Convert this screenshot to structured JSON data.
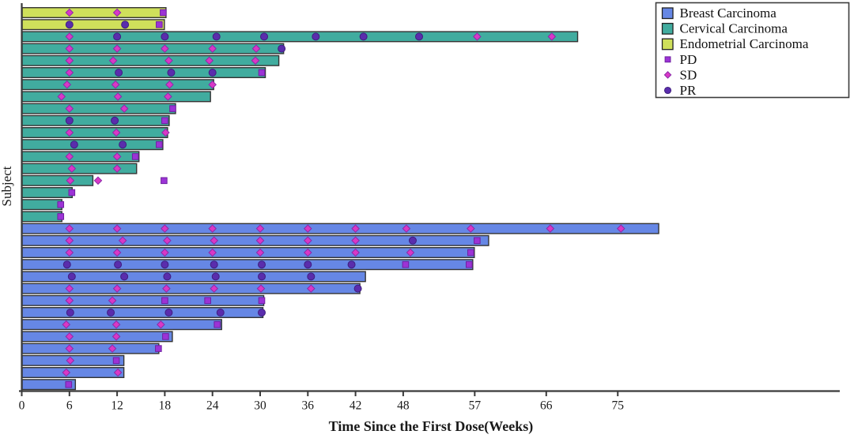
{
  "chart_data": {
    "type": "bar",
    "subtype": "horizontal-swimmer-plot",
    "title": "",
    "xlabel": "Time Since the First Dose(Weeks)",
    "ylabel": "Subject",
    "x_ticks": [
      0,
      6,
      12,
      18,
      24,
      30,
      36,
      42,
      48,
      57,
      66,
      75
    ],
    "xlim": [
      0,
      103
    ],
    "grid": false,
    "background": "#ffffff",
    "axis_color": "#3a3a3a",
    "bar_edge_color": "#343434",
    "legend": {
      "position": "top-right",
      "border_color": "#3c3c3c",
      "bar_entries": [
        {
          "label": "Breast Carcinoma",
          "color": "#6687e5"
        },
        {
          "label": "Cervical Carcinoma",
          "color": "#41ac9f"
        },
        {
          "label": "Endometrial Carcinoma",
          "color": "#cfe05b"
        }
      ],
      "marker_entries": [
        {
          "label": "PD",
          "shape": "square",
          "color": "#9c33d6",
          "edge": "#6f21a0"
        },
        {
          "label": "SD",
          "shape": "diamond",
          "color": "#d938c6",
          "edge": "#8a2ba8"
        },
        {
          "label": "PR",
          "shape": "circle",
          "color": "#5a2dad",
          "edge": "#3f1e7e"
        }
      ]
    },
    "marker_styles": {
      "PD": {
        "shape": "square",
        "color": "#9c33d6",
        "edge": "#6f21a0"
      },
      "SD": {
        "shape": "diamond",
        "color": "#d938c6",
        "edge": "#8a2ba8"
      },
      "PR": {
        "shape": "circle",
        "color": "#5a2dad",
        "edge": "#3f1e7e"
      }
    },
    "group_colors": {
      "Breast Carcinoma": "#6687e5",
      "Cervical Carcinoma": "#41ac9f",
      "Endometrial Carcinoma": "#cfe05b"
    },
    "rows": [
      {
        "group": "Endometrial Carcinoma",
        "end_week": 18.2,
        "markers": [
          {
            "type": "SD",
            "week": 6
          },
          {
            "type": "SD",
            "week": 12
          },
          {
            "type": "PD",
            "week": 17.8
          }
        ]
      },
      {
        "group": "Endometrial Carcinoma",
        "end_week": 18.0,
        "markers": [
          {
            "type": "PR",
            "week": 6
          },
          {
            "type": "PR",
            "week": 13
          },
          {
            "type": "PD",
            "week": 17.3
          }
        ]
      },
      {
        "group": "Cervical Carcinoma",
        "end_week": 70.0,
        "markers": [
          {
            "type": "SD",
            "week": 6
          },
          {
            "type": "PR",
            "week": 12
          },
          {
            "type": "PR",
            "week": 18
          },
          {
            "type": "PR",
            "week": 24.5
          },
          {
            "type": "PR",
            "week": 30.5
          },
          {
            "type": "PR",
            "week": 37
          },
          {
            "type": "PR",
            "week": 43
          },
          {
            "type": "PR",
            "week": 50
          },
          {
            "type": "SD",
            "week": 57.3
          },
          {
            "type": "SD",
            "week": 66.7
          }
        ]
      },
      {
        "group": "Cervical Carcinoma",
        "end_week": 33.0,
        "markers": [
          {
            "type": "SD",
            "week": 6
          },
          {
            "type": "SD",
            "week": 12
          },
          {
            "type": "SD",
            "week": 18
          },
          {
            "type": "SD",
            "week": 24
          },
          {
            "type": "SD",
            "week": 29.5
          },
          {
            "type": "PR",
            "week": 32.7
          }
        ]
      },
      {
        "group": "Cervical Carcinoma",
        "end_week": 32.4,
        "markers": [
          {
            "type": "SD",
            "week": 6
          },
          {
            "type": "SD",
            "week": 11.5
          },
          {
            "type": "SD",
            "week": 18.5
          },
          {
            "type": "SD",
            "week": 23.6
          },
          {
            "type": "SD",
            "week": 29.4
          }
        ]
      },
      {
        "group": "Cervical Carcinoma",
        "end_week": 30.7,
        "markers": [
          {
            "type": "SD",
            "week": 6
          },
          {
            "type": "PR",
            "week": 12.2
          },
          {
            "type": "PR",
            "week": 18.8
          },
          {
            "type": "PR",
            "week": 24
          },
          {
            "type": "PD",
            "week": 30.2
          }
        ]
      },
      {
        "group": "Cervical Carcinoma",
        "end_week": 24.2,
        "markers": [
          {
            "type": "SD",
            "week": 5.7
          },
          {
            "type": "SD",
            "week": 11.8
          },
          {
            "type": "SD",
            "week": 18.6
          },
          {
            "type": "SD",
            "week": 24
          }
        ]
      },
      {
        "group": "Cervical Carcinoma",
        "end_week": 23.8,
        "markers": [
          {
            "type": "SD",
            "week": 5
          },
          {
            "type": "SD",
            "week": 12.1
          },
          {
            "type": "SD",
            "week": 18.4
          }
        ]
      },
      {
        "group": "Cervical Carcinoma",
        "end_week": 19.4,
        "markers": [
          {
            "type": "SD",
            "week": 6
          },
          {
            "type": "SD",
            "week": 12.9
          },
          {
            "type": "PD",
            "week": 19
          }
        ]
      },
      {
        "group": "Cervical Carcinoma",
        "end_week": 18.6,
        "markers": [
          {
            "type": "PR",
            "week": 6
          },
          {
            "type": "PR",
            "week": 11.7
          },
          {
            "type": "PD",
            "week": 18
          }
        ]
      },
      {
        "group": "Cervical Carcinoma",
        "end_week": 18.4,
        "markers": [
          {
            "type": "SD",
            "week": 6
          },
          {
            "type": "SD",
            "week": 11.9
          },
          {
            "type": "SD",
            "week": 18.1
          }
        ]
      },
      {
        "group": "Cervical Carcinoma",
        "end_week": 17.8,
        "markers": [
          {
            "type": "PR",
            "week": 6.6
          },
          {
            "type": "PR",
            "week": 12.7
          },
          {
            "type": "PD",
            "week": 17.3
          }
        ]
      },
      {
        "group": "Cervical Carcinoma",
        "end_week": 14.8,
        "markers": [
          {
            "type": "SD",
            "week": 6
          },
          {
            "type": "SD",
            "week": 12
          },
          {
            "type": "PD",
            "week": 14.3
          }
        ]
      },
      {
        "group": "Cervical Carcinoma",
        "end_week": 14.5,
        "markers": [
          {
            "type": "SD",
            "week": 6.3
          },
          {
            "type": "SD",
            "week": 12
          }
        ]
      },
      {
        "group": "Cervical Carcinoma",
        "end_week": 9.0,
        "markers": [
          {
            "type": "SD",
            "week": 6.1
          },
          {
            "type": "SD",
            "week": 9.6
          },
          {
            "type": "PD",
            "week": 17.9
          }
        ]
      },
      {
        "group": "Cervical Carcinoma",
        "end_week": 6.4,
        "markers": [
          {
            "type": "PD",
            "week": 6.3
          }
        ]
      },
      {
        "group": "Cervical Carcinoma",
        "end_week": 5.1,
        "markers": [
          {
            "type": "PD",
            "week": 4.9
          }
        ]
      },
      {
        "group": "Cervical Carcinoma",
        "end_week": 5.1,
        "markers": [
          {
            "type": "PD",
            "week": 4.9
          }
        ]
      },
      {
        "group": "Breast Carcinoma",
        "end_week": 80.2,
        "markers": [
          {
            "type": "SD",
            "week": 6
          },
          {
            "type": "SD",
            "week": 12
          },
          {
            "type": "SD",
            "week": 18
          },
          {
            "type": "SD",
            "week": 24
          },
          {
            "type": "SD",
            "week": 30
          },
          {
            "type": "SD",
            "week": 36
          },
          {
            "type": "SD",
            "week": 42
          },
          {
            "type": "SD",
            "week": 48.4
          },
          {
            "type": "SD",
            "week": 56.5
          },
          {
            "type": "SD",
            "week": 66.5
          },
          {
            "type": "SD",
            "week": 75.4
          }
        ]
      },
      {
        "group": "Breast Carcinoma",
        "end_week": 58.8,
        "markers": [
          {
            "type": "SD",
            "week": 6
          },
          {
            "type": "SD",
            "week": 12.7
          },
          {
            "type": "SD",
            "week": 18.3
          },
          {
            "type": "SD",
            "week": 24.2
          },
          {
            "type": "SD",
            "week": 30
          },
          {
            "type": "SD",
            "week": 36
          },
          {
            "type": "SD",
            "week": 42
          },
          {
            "type": "PR",
            "week": 49.2
          },
          {
            "type": "PD",
            "week": 57.3
          }
        ]
      },
      {
        "group": "Breast Carcinoma",
        "end_week": 57.0,
        "markers": [
          {
            "type": "SD",
            "week": 6
          },
          {
            "type": "SD",
            "week": 12
          },
          {
            "type": "SD",
            "week": 18
          },
          {
            "type": "SD",
            "week": 24
          },
          {
            "type": "SD",
            "week": 30
          },
          {
            "type": "SD",
            "week": 36
          },
          {
            "type": "SD",
            "week": 42
          },
          {
            "type": "SD",
            "week": 48.9
          },
          {
            "type": "PD",
            "week": 56.5
          }
        ]
      },
      {
        "group": "Breast Carcinoma",
        "end_week": 56.8,
        "markers": [
          {
            "type": "PR",
            "week": 5.7
          },
          {
            "type": "PR",
            "week": 12.1
          },
          {
            "type": "PR",
            "week": 18
          },
          {
            "type": "PR",
            "week": 24.2
          },
          {
            "type": "PR",
            "week": 30.2
          },
          {
            "type": "PR",
            "week": 36
          },
          {
            "type": "PR",
            "week": 41.5
          },
          {
            "type": "PD",
            "week": 48.3
          },
          {
            "type": "PD",
            "week": 56.3
          }
        ]
      },
      {
        "group": "Breast Carcinoma",
        "end_week": 43.3,
        "markers": [
          {
            "type": "PR",
            "week": 6.3
          },
          {
            "type": "PR",
            "week": 12.9
          },
          {
            "type": "PR",
            "week": 18.3
          },
          {
            "type": "PR",
            "week": 24.4
          },
          {
            "type": "PR",
            "week": 30.2
          },
          {
            "type": "PR",
            "week": 36.4
          }
        ]
      },
      {
        "group": "Breast Carcinoma",
        "end_week": 42.6,
        "markers": [
          {
            "type": "SD",
            "week": 6
          },
          {
            "type": "SD",
            "week": 12
          },
          {
            "type": "SD",
            "week": 18.2
          },
          {
            "type": "SD",
            "week": 24.2
          },
          {
            "type": "SD",
            "week": 30.1
          },
          {
            "type": "SD",
            "week": 36.4
          },
          {
            "type": "PR",
            "week": 42.3
          }
        ]
      },
      {
        "group": "Breast Carcinoma",
        "end_week": 30.5,
        "markers": [
          {
            "type": "SD",
            "week": 6
          },
          {
            "type": "SD",
            "week": 11.4
          },
          {
            "type": "PD",
            "week": 18
          },
          {
            "type": "PD",
            "week": 23.4
          },
          {
            "type": "PD",
            "week": 30.2
          }
        ]
      },
      {
        "group": "Breast Carcinoma",
        "end_week": 30.4,
        "markers": [
          {
            "type": "PR",
            "week": 6.1
          },
          {
            "type": "PR",
            "week": 11.2
          },
          {
            "type": "PR",
            "week": 18.5
          },
          {
            "type": "PR",
            "week": 25
          },
          {
            "type": "PR",
            "week": 30.2
          }
        ]
      },
      {
        "group": "Breast Carcinoma",
        "end_week": 25.2,
        "markers": [
          {
            "type": "SD",
            "week": 5.6
          },
          {
            "type": "SD",
            "week": 11.9
          },
          {
            "type": "SD",
            "week": 17.5
          },
          {
            "type": "PD",
            "week": 24.6
          }
        ]
      },
      {
        "group": "Breast Carcinoma",
        "end_week": 19.0,
        "markers": [
          {
            "type": "SD",
            "week": 6
          },
          {
            "type": "SD",
            "week": 11.9
          },
          {
            "type": "PD",
            "week": 18.1
          }
        ]
      },
      {
        "group": "Breast Carcinoma",
        "end_week": 17.3,
        "markers": [
          {
            "type": "SD",
            "week": 6
          },
          {
            "type": "SD",
            "week": 11.4
          },
          {
            "type": "PD",
            "week": 17.2
          }
        ]
      },
      {
        "group": "Breast Carcinoma",
        "end_week": 12.9,
        "markers": [
          {
            "type": "SD",
            "week": 6.1
          },
          {
            "type": "PD",
            "week": 11.9
          }
        ]
      },
      {
        "group": "Breast Carcinoma",
        "end_week": 12.9,
        "markers": [
          {
            "type": "SD",
            "week": 5.6
          },
          {
            "type": "SD",
            "week": 12.1
          }
        ]
      },
      {
        "group": "Breast Carcinoma",
        "end_week": 6.8,
        "markers": [
          {
            "type": "PD",
            "week": 5.9
          }
        ]
      }
    ]
  }
}
